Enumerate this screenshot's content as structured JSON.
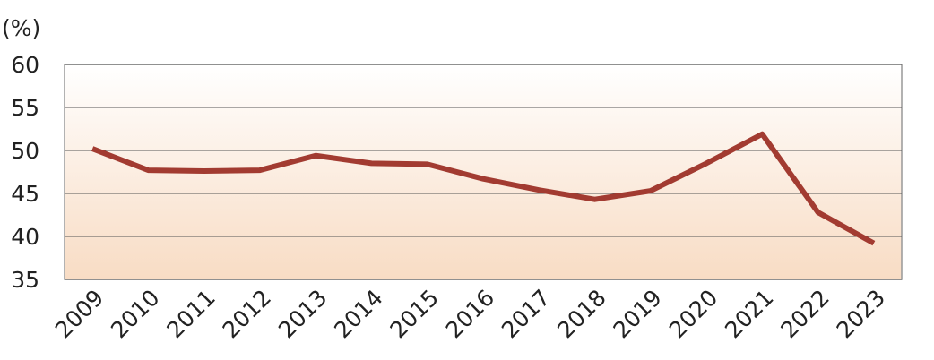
{
  "chart_data": {
    "type": "line",
    "unit_label": "(%)",
    "categories": [
      "2009",
      "2010",
      "2011",
      "2012",
      "2013",
      "2014",
      "2015",
      "2016",
      "2017",
      "2018",
      "2019",
      "2020",
      "2021",
      "2022",
      "2023"
    ],
    "series": [
      {
        "color": "#a23b31",
        "values": [
          50.2,
          47.7,
          47.6,
          47.7,
          49.4,
          48.5,
          48.4,
          46.7,
          45.4,
          44.3,
          45.3,
          48.5,
          51.9,
          42.8,
          39.2
        ]
      }
    ],
    "ylim": [
      35,
      60
    ],
    "yticks": [
      35,
      40,
      45,
      50,
      55,
      60
    ],
    "grid": true
  }
}
